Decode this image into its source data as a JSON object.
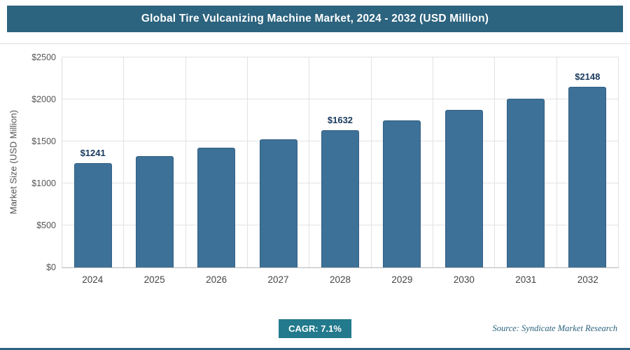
{
  "chart_data": {
    "type": "bar",
    "title": "Global Tire Vulcanizing Machine Market, 2024 - 2032 (USD Million)",
    "ylabel": "Market Size (USD Million)",
    "xlabel": "",
    "categories": [
      "2024",
      "2025",
      "2026",
      "2027",
      "2028",
      "2029",
      "2030",
      "2031",
      "2032"
    ],
    "values": [
      1241,
      1329,
      1424,
      1525,
      1632,
      1748,
      1872,
      2005,
      2148
    ],
    "point_labels": [
      "$1241",
      "",
      "",
      "",
      "$1632",
      "",
      "",
      "",
      "$2148"
    ],
    "ylim": [
      0,
      2500
    ],
    "y_tick_values": [
      0,
      500,
      1000,
      1500,
      2000,
      2500
    ],
    "y_tick_labels": [
      "$0",
      "$500",
      "$1000",
      "$1500",
      "$2000",
      "$2500"
    ],
    "grid": "horizontal-and-vertical",
    "legend": "none",
    "bar_color": "#3d7197"
  },
  "footer": {
    "cagr_label": "CAGR: 7.1%",
    "source": "Source: Syndicate Market Research"
  },
  "colors": {
    "header_bg": "#2c637e",
    "bar_fill": "#3d7197",
    "badge_bg": "#227a8c",
    "gridline": "#e2e2e2",
    "bottom_border": "#2c637e"
  }
}
